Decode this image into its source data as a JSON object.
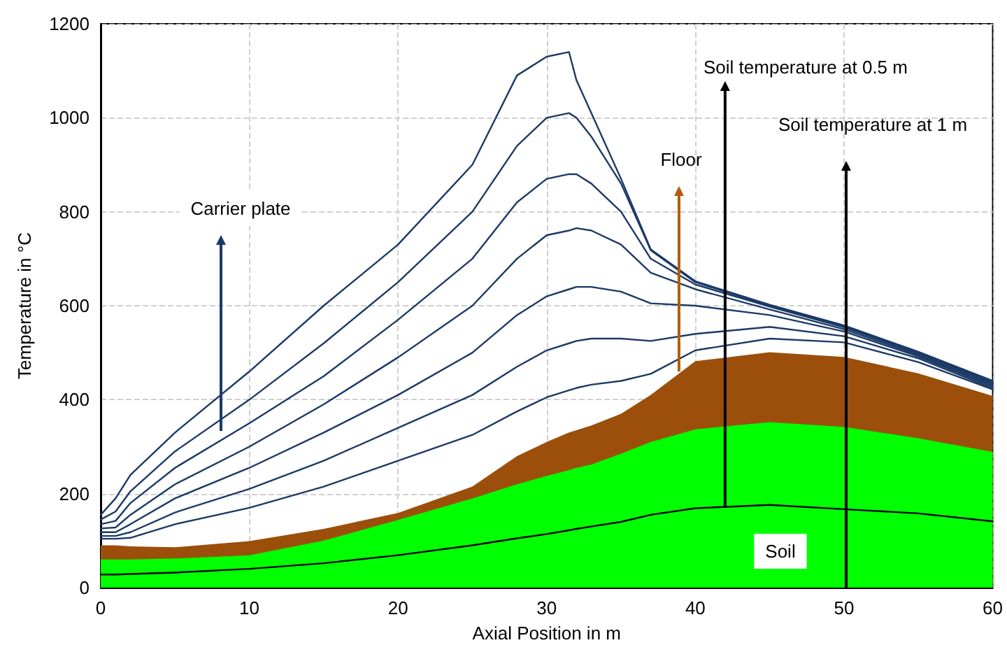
{
  "chart_data": {
    "type": "line",
    "xlabel": "Axial Position in m",
    "ylabel": "Temperature in °C",
    "xlim": [
      0,
      60
    ],
    "xticks": [
      0,
      10,
      20,
      30,
      40,
      50,
      60
    ],
    "ylim": [
      0,
      1200
    ],
    "yticks": [
      0,
      200,
      400,
      600,
      800,
      1000,
      1200
    ],
    "grid": true,
    "marker": "none",
    "line_style": "solid",
    "x": [
      0,
      1,
      2,
      5,
      10,
      15,
      20,
      25,
      28,
      30,
      31.5,
      32,
      33,
      35,
      37,
      40,
      45,
      50,
      55,
      60
    ],
    "series": [
      {
        "type": "area",
        "color": "#9b4f0b",
        "values": [
          90,
          90,
          88,
          86,
          99,
          125,
          159,
          215,
          280,
          310,
          330,
          335,
          345,
          370,
          410,
          482,
          501,
          491,
          456,
          408
        ]
      },
      {
        "type": "area",
        "color": "#00ff00",
        "values": [
          60,
          60,
          60,
          62,
          69,
          100,
          144,
          190,
          220,
          238,
          250,
          255,
          262,
          285,
          310,
          337,
          352,
          342,
          318,
          289
        ]
      },
      {
        "color": "#1b3a66",
        "values": [
          155,
          190,
          240,
          330,
          460,
          600,
          730,
          900,
          1090,
          1130,
          1140,
          1080,
          1010,
          870,
          720,
          652,
          602,
          558,
          502,
          440
        ]
      },
      {
        "color": "#1b3a66",
        "values": [
          145,
          162,
          205,
          290,
          400,
          520,
          650,
          800,
          940,
          1000,
          1010,
          1000,
          960,
          860,
          718,
          650,
          600,
          556,
          500,
          437
        ]
      },
      {
        "color": "#1b3a66",
        "values": [
          135,
          142,
          180,
          255,
          350,
          450,
          570,
          700,
          820,
          870,
          880,
          880,
          860,
          800,
          700,
          645,
          598,
          554,
          498,
          434
        ]
      },
      {
        "color": "#1b3a66",
        "values": [
          126,
          128,
          155,
          220,
          300,
          390,
          490,
          600,
          700,
          750,
          760,
          765,
          760,
          730,
          670,
          635,
          592,
          550,
          495,
          431
        ]
      },
      {
        "color": "#1b3a66",
        "values": [
          118,
          118,
          135,
          190,
          255,
          330,
          410,
          500,
          580,
          620,
          635,
          640,
          640,
          630,
          605,
          600,
          580,
          545,
          492,
          428
        ]
      },
      {
        "color": "#1b3a66",
        "values": [
          110,
          110,
          118,
          160,
          210,
          270,
          340,
          410,
          470,
          505,
          520,
          525,
          530,
          530,
          525,
          540,
          555,
          535,
          488,
          424
        ]
      },
      {
        "color": "#1b3a66",
        "values": [
          104,
          104,
          106,
          135,
          170,
          215,
          270,
          325,
          375,
          405,
          420,
          425,
          432,
          440,
          455,
          505,
          530,
          522,
          480,
          422
        ]
      },
      {
        "color": "#000000",
        "values": [
          28,
          28,
          29,
          32,
          40,
          52,
          69,
          90,
          105,
          114,
          122,
          125,
          130,
          140,
          155,
          169,
          176,
          167,
          158,
          141
        ]
      }
    ],
    "annotations": [
      "Carrier plate",
      {
        "text": "Floor",
        "x": 38.9,
        "y": 460
      },
      {
        "text": "Soil temperature at 0.5 m",
        "x": 42,
        "y": 173
      },
      "Soil temperature at 1 m",
      "Soil"
    ]
  }
}
